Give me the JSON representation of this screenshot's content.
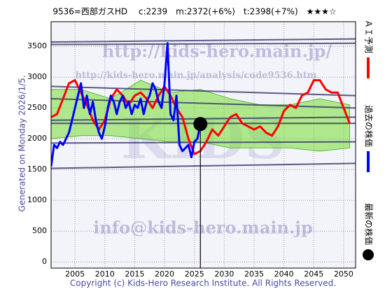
{
  "chart_data": {
    "type": "line",
    "title": "9536=西部ガスHD　 c:2239　m:2372(+6%)　t:2398(+7%)　★★★☆",
    "side_note": "Generated on Monday 2026/1/5.",
    "footer": "Copyright (c) Kids-Hero Research Institute. All Rights Reserved.",
    "watermarks": [
      "http://kids-hero.main.jp/",
      "http://kids-hero.main.jp/analysis/code9536.htm",
      "KIDS",
      "info@kids-hero.main.jp"
    ],
    "xlim": [
      2001,
      2052
    ],
    "ylim": [
      -100,
      3900
    ],
    "xticks": [
      2005,
      2010,
      2015,
      2020,
      2025,
      2030,
      2035,
      2040,
      2045,
      2050
    ],
    "yticks": [
      0,
      500,
      1000,
      1500,
      2000,
      2500,
      3000,
      3500
    ],
    "grid": true,
    "band": {
      "color": "#77dd33",
      "x": [
        2001,
        2006,
        2011,
        2016,
        2021,
        2026,
        2031,
        2036,
        2041,
        2046,
        2051
      ],
      "upper": [
        2800,
        2800,
        2650,
        2950,
        2750,
        2800,
        2650,
        2550,
        2550,
        2650,
        2550
      ],
      "lower": [
        2000,
        2050,
        2050,
        2000,
        1950,
        1950,
        1850,
        1850,
        1850,
        1800,
        1850
      ]
    },
    "trend_lines": [
      {
        "color": "#333366",
        "x": [
          2001,
          2052
        ],
        "values": [
          3570,
          3620
        ]
      },
      {
        "color": "#333366",
        "x": [
          2001,
          2052
        ],
        "values": [
          3530,
          3550
        ]
      },
      {
        "color": "#333366",
        "x": [
          2001,
          2052
        ],
        "values": [
          2850,
          2700
        ]
      },
      {
        "color": "#333366",
        "x": [
          2001,
          2052
        ],
        "values": [
          2650,
          2500
        ]
      },
      {
        "color": "#333366",
        "x": [
          2001,
          2052
        ],
        "values": [
          2300,
          2350
        ]
      },
      {
        "color": "#333366",
        "x": [
          2001,
          2052
        ],
        "values": [
          2250,
          2250
        ]
      },
      {
        "color": "#333366",
        "x": [
          2001,
          2052
        ],
        "values": [
          1930,
          1950
        ]
      },
      {
        "color": "#333366",
        "x": [
          2001,
          2052
        ],
        "values": [
          1520,
          1600
        ]
      }
    ],
    "series": [
      {
        "name": "ＡＩ予測",
        "color": "#ff0000",
        "x": [
          2001,
          2002,
          2003,
          2004,
          2005,
          2006,
          2007,
          2008,
          2009,
          2010,
          2011,
          2012,
          2013,
          2014,
          2015,
          2016,
          2017,
          2018,
          2019,
          2020,
          2021,
          2022,
          2023,
          2024,
          2025,
          2026,
          2027,
          2028,
          2029,
          2030,
          2031,
          2032,
          2033,
          2034,
          2035,
          2036,
          2037,
          2038,
          2039,
          2040,
          2041,
          2042,
          2043,
          2044,
          2045,
          2046,
          2047,
          2048,
          2049,
          2050,
          2051
        ],
        "values": [
          2350,
          2400,
          2650,
          2900,
          2950,
          2750,
          2550,
          2300,
          2150,
          2300,
          2650,
          2800,
          2700,
          2550,
          2700,
          2750,
          2650,
          2500,
          2700,
          2850,
          2700,
          2500,
          2350,
          2000,
          1750,
          1800,
          1950,
          2150,
          2050,
          2200,
          2350,
          2400,
          2250,
          2200,
          2150,
          2200,
          2100,
          2050,
          2200,
          2450,
          2550,
          2500,
          2700,
          2750,
          2950,
          2950,
          2800,
          2750,
          2750,
          2500,
          2250
        ]
      },
      {
        "name": "過去の株価",
        "color": "#0000ff",
        "x": [
          2001,
          2001.5,
          2002,
          2002.5,
          2003,
          2003.5,
          2004,
          2004.5,
          2005,
          2005.5,
          2006,
          2006.5,
          2007,
          2007.5,
          2008,
          2008.5,
          2009,
          2009.5,
          2010,
          2010.5,
          2011,
          2011.5,
          2012,
          2012.5,
          2013,
          2013.5,
          2014,
          2014.5,
          2015,
          2015.5,
          2016,
          2016.5,
          2017,
          2017.5,
          2018,
          2018.5,
          2019,
          2019.5,
          2020,
          2020.5,
          2021,
          2021.5,
          2022,
          2022.5,
          2023,
          2023.5,
          2024,
          2024.5,
          2025,
          2025.5,
          2026
        ],
        "values": [
          1550,
          1900,
          1850,
          1950,
          1900,
          2000,
          2100,
          2300,
          2500,
          2700,
          2900,
          2500,
          2700,
          2400,
          2600,
          2300,
          2100,
          2000,
          2200,
          2500,
          2700,
          2600,
          2400,
          2600,
          2700,
          2500,
          2600,
          2400,
          2550,
          2500,
          2650,
          2400,
          2600,
          2700,
          2900,
          2800,
          2600,
          2500,
          2900,
          3550,
          2400,
          2300,
          2700,
          1900,
          1800,
          1850,
          1900,
          1700,
          1950,
          2000,
          2239
        ]
      }
    ],
    "current": {
      "name": "最新の株価",
      "color": "#000000",
      "x": 2026,
      "value": 2239
    }
  }
}
